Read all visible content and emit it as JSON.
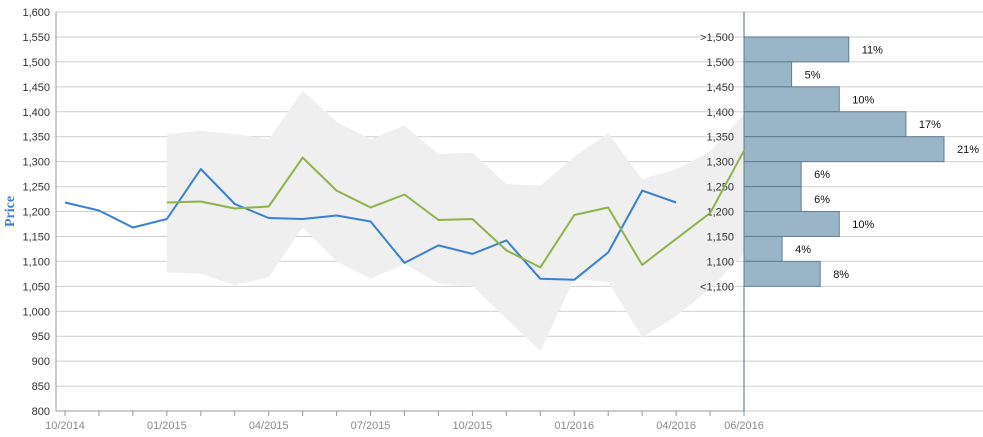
{
  "chart_data": {
    "type": "line",
    "title": "",
    "ylabel": "Price",
    "xlabel": "",
    "ylim": [
      800,
      1600
    ],
    "yticks": [
      800,
      850,
      900,
      950,
      1000,
      1050,
      1100,
      1150,
      1200,
      1250,
      1300,
      1350,
      1400,
      1450,
      1500,
      1550,
      1600
    ],
    "ytick_labels": [
      "800",
      "850",
      "900",
      "950",
      "1,000",
      "1,050",
      "1,100",
      "1,150",
      "1,200",
      "1,250",
      "1,300",
      "1,350",
      "1,400",
      "1,450",
      "1,500",
      "1,550",
      "1,600"
    ],
    "x_periods": [
      "10/2014",
      "11/2014",
      "12/2014",
      "01/2015",
      "02/2015",
      "03/2015",
      "04/2015",
      "05/2015",
      "06/2015",
      "07/2015",
      "08/2015",
      "09/2015",
      "10/2015",
      "11/2015",
      "12/2015",
      "01/2016",
      "02/2016",
      "03/2016",
      "04/2016",
      "05/2016",
      "06/2016"
    ],
    "x_tick_labels": [
      {
        "period": "10/2014",
        "label": "10/2014"
      },
      {
        "period": "01/2015",
        "label": "01/2015"
      },
      {
        "period": "04/2015",
        "label": "04/2015"
      },
      {
        "period": "07/2015",
        "label": "07/2015"
      },
      {
        "period": "10/2015",
        "label": "10/2015"
      },
      {
        "period": "01/2016",
        "label": "01/2016"
      },
      {
        "period": "04/2016",
        "label": "04/2016"
      },
      {
        "period": "06/2016",
        "label": "06/2016"
      }
    ],
    "grid": true,
    "series": [
      {
        "color": "#3a7fd2",
        "x": [
          "10/2014",
          "11/2014",
          "12/2014",
          "01/2015",
          "02/2015",
          "03/2015",
          "04/2015",
          "05/2015",
          "06/2015",
          "07/2015",
          "08/2015",
          "09/2015",
          "10/2015",
          "11/2015",
          "12/2015",
          "01/2016",
          "02/2016",
          "03/2016",
          "04/2016"
        ],
        "values": [
          1218,
          1202,
          1168,
          1185,
          1285,
          1215,
          1187,
          1185,
          1192,
          1180,
          1097,
          1132,
          1115,
          1142,
          1065,
          1063,
          1118,
          1242,
          1218
        ]
      },
      {
        "color": "#8db34a",
        "x": [
          "01/2015",
          "02/2015",
          "03/2015",
          "04/2015",
          "05/2015",
          "06/2015",
          "07/2015",
          "08/2015",
          "09/2015",
          "10/2015",
          "11/2015",
          "12/2015",
          "01/2016",
          "02/2016",
          "03/2016",
          "04/2016",
          "05/2016",
          "06/2016"
        ],
        "values": [
          1218,
          1220,
          1206,
          1210,
          1308,
          1242,
          1208,
          1234,
          1183,
          1185,
          1122,
          1088,
          1193,
          1208,
          1093,
          1145,
          1197,
          1322
        ]
      }
    ],
    "band": {
      "color": "#efefef",
      "x": [
        "01/2015",
        "02/2015",
        "03/2015",
        "04/2015",
        "05/2015",
        "06/2015",
        "07/2015",
        "08/2015",
        "09/2015",
        "10/2015",
        "11/2015",
        "12/2015",
        "01/2016",
        "02/2016",
        "03/2016",
        "04/2016",
        "05/2016",
        "06/2016"
      ],
      "upper": [
        1355,
        1362,
        1355,
        1345,
        1442,
        1380,
        1345,
        1372,
        1315,
        1318,
        1255,
        1252,
        1310,
        1357,
        1265,
        1285,
        1320,
        1395
      ],
      "lower": [
        1078,
        1075,
        1052,
        1068,
        1168,
        1100,
        1065,
        1095,
        1055,
        1050,
        985,
        920,
        1065,
        1058,
        948,
        990,
        1045,
        1115
      ]
    },
    "histogram": {
      "color": "#9ab5c8",
      "labels": [
        ">1,500",
        "1,500",
        "1,450",
        "1,400",
        "1,350",
        "1,300",
        "1,250",
        "1,200",
        "1,150",
        "1,100",
        "<1,100"
      ],
      "bins": [
        {
          "low": 1500,
          "high": 1550,
          "pct": 11,
          "label": "11%"
        },
        {
          "low": 1450,
          "high": 1500,
          "pct": 5,
          "label": "5%"
        },
        {
          "low": 1400,
          "high": 1450,
          "pct": 10,
          "label": "10%"
        },
        {
          "low": 1350,
          "high": 1400,
          "pct": 17,
          "label": "17%"
        },
        {
          "low": 1300,
          "high": 1350,
          "pct": 21,
          "label": "21%"
        },
        {
          "low": 1250,
          "high": 1300,
          "pct": 6,
          "label": "6%"
        },
        {
          "low": 1200,
          "high": 1250,
          "pct": 6,
          "label": "6%"
        },
        {
          "low": 1150,
          "high": 1200,
          "pct": 10,
          "label": "10%"
        },
        {
          "low": 1100,
          "high": 1150,
          "pct": 4,
          "label": "4%"
        },
        {
          "low": 1050,
          "high": 1100,
          "pct": 8,
          "label": "8%"
        }
      ]
    }
  }
}
